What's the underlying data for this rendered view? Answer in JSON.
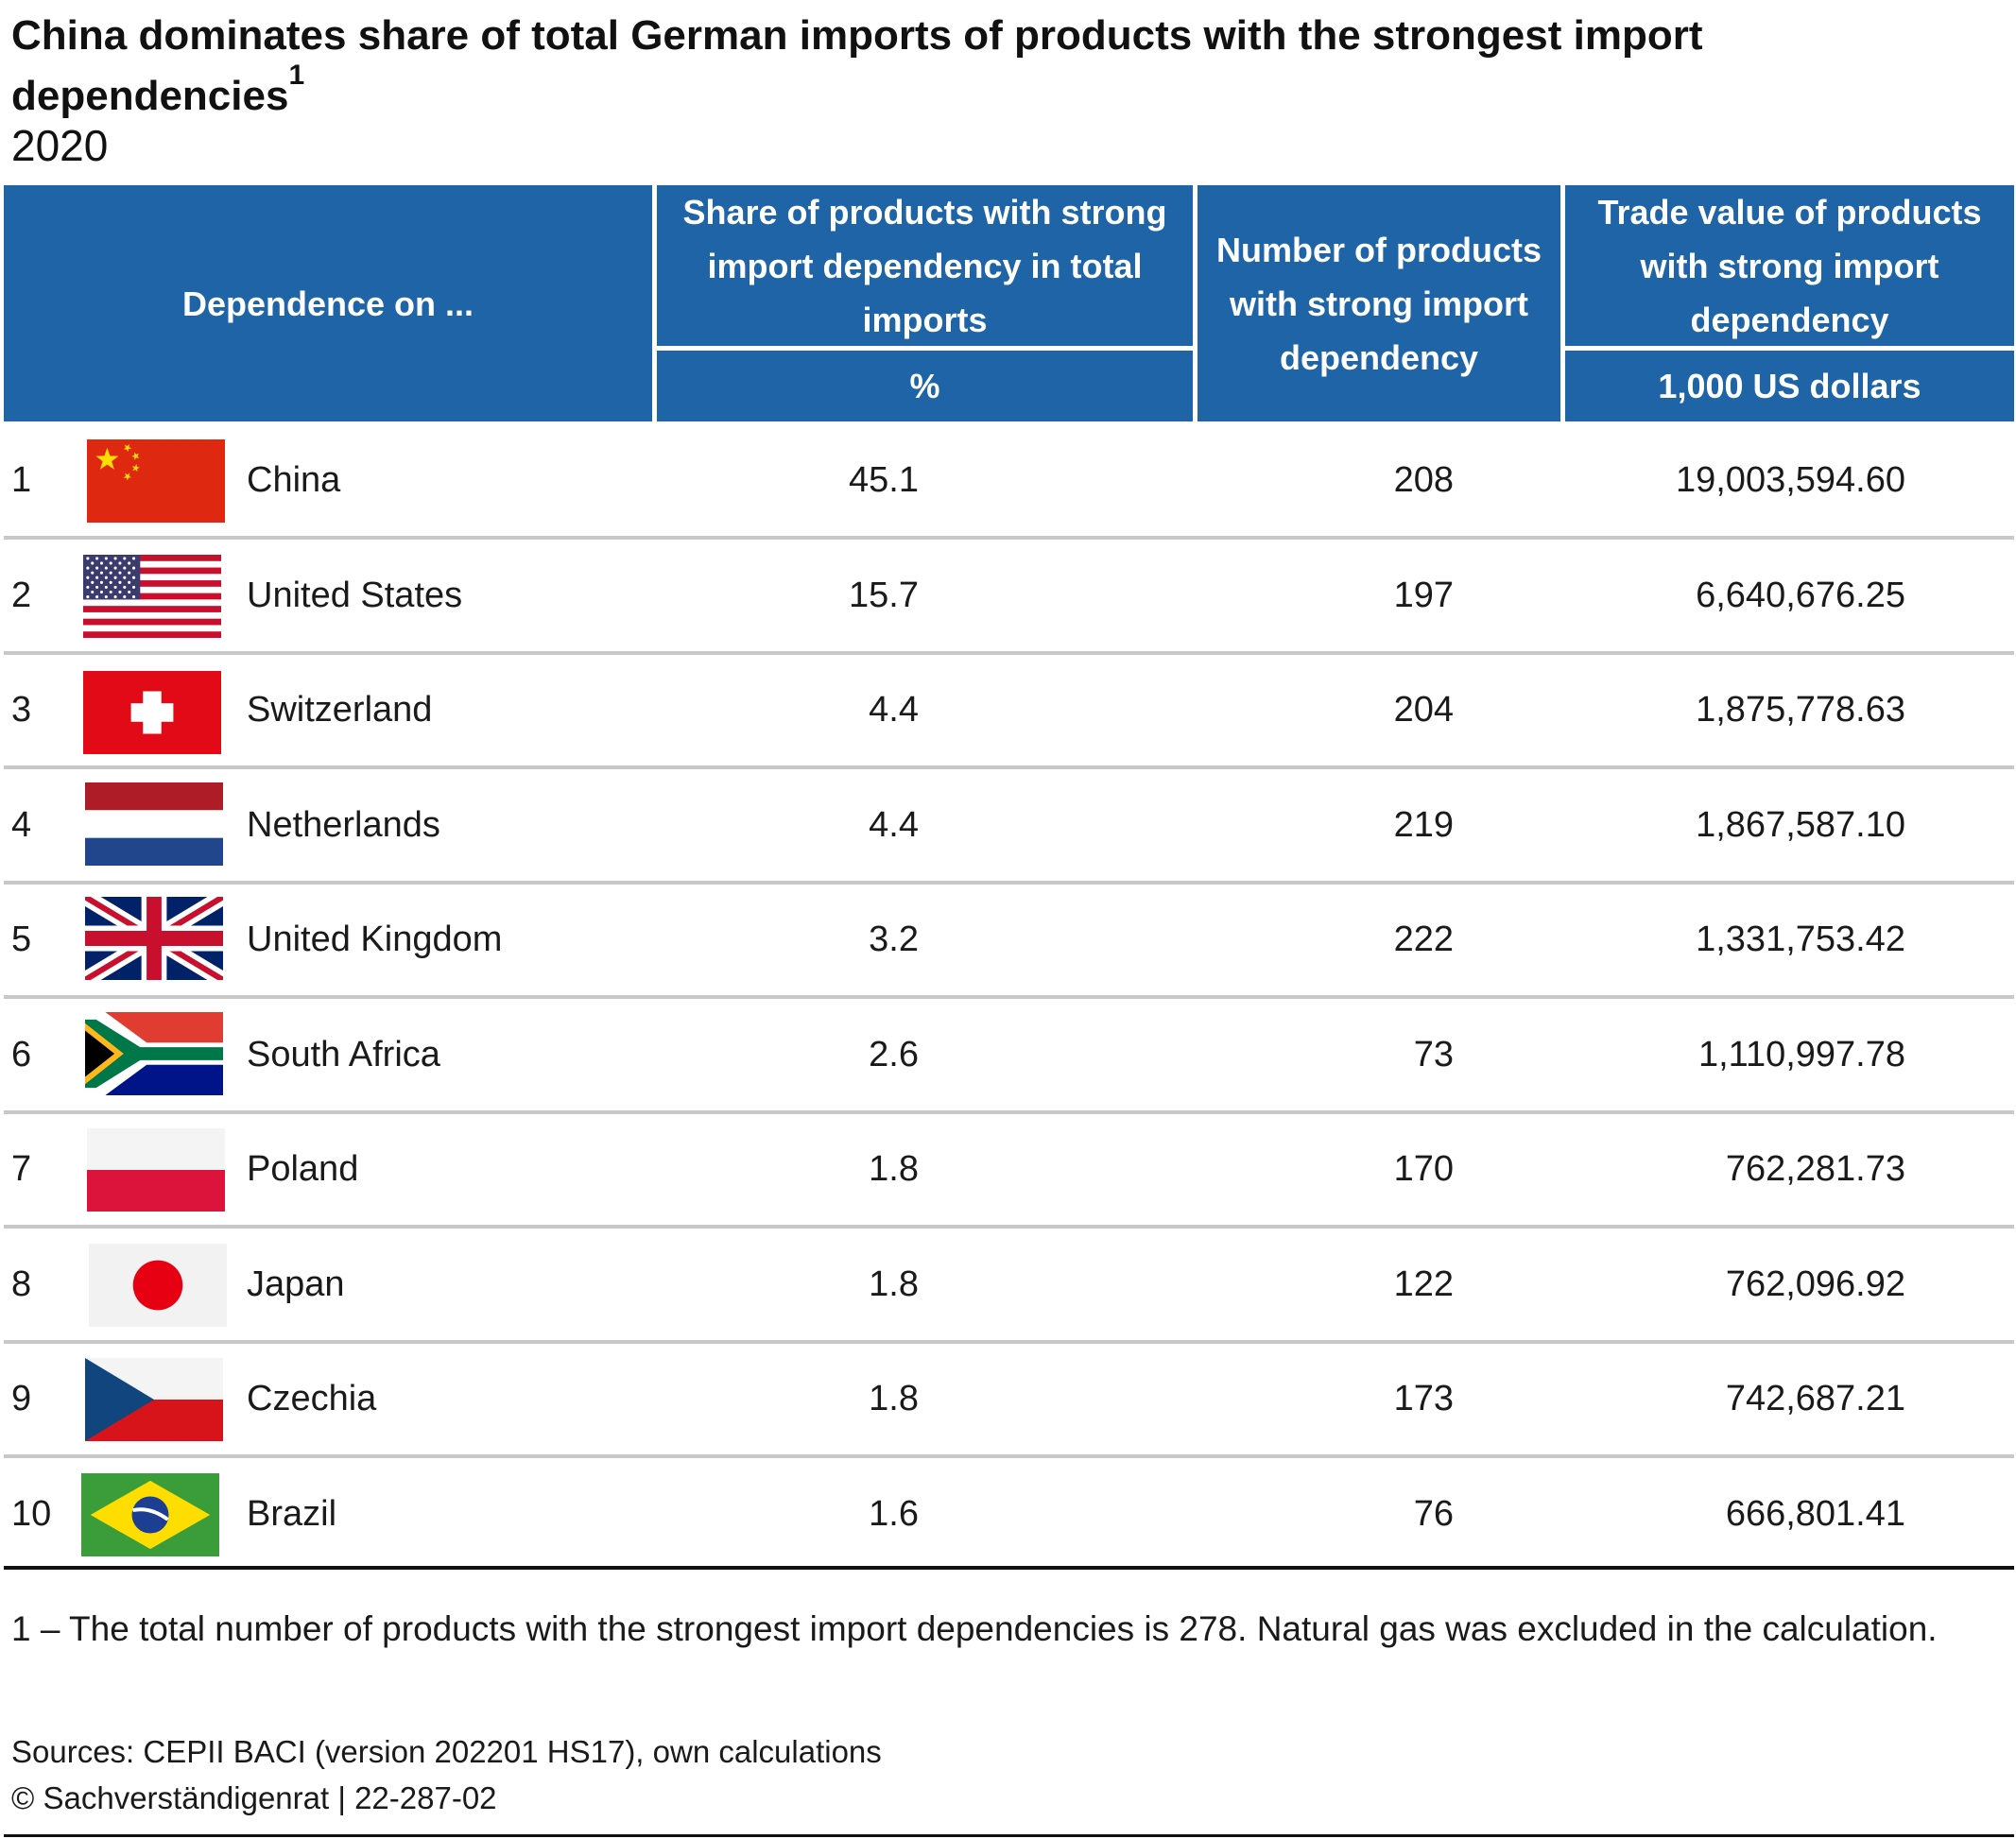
{
  "title": "China dominates share of total German imports of products with the strongest import dependencies",
  "title_footnote_ref": "1",
  "subtitle": "2020",
  "columns": {
    "dependence": "Dependence on ...",
    "share": "Share of products with strong import dependency in total imports",
    "share_unit": "%",
    "number": "Number of products with strong import dependency",
    "trade": "Trade value of products with strong import dependency",
    "trade_unit": "1,000 US dollars"
  },
  "rows": [
    {
      "rank": "1",
      "country": "China",
      "share": "45.1",
      "number": "208",
      "trade": "19,003,594.60",
      "flag": "china-flag"
    },
    {
      "rank": "2",
      "country": "United States",
      "share": "15.7",
      "number": "197",
      "trade": "6,640,676.25",
      "flag": "usa-flag"
    },
    {
      "rank": "3",
      "country": "Switzerland",
      "share": "4.4",
      "number": "204",
      "trade": "1,875,778.63",
      "flag": "switzerland-flag"
    },
    {
      "rank": "4",
      "country": "Netherlands",
      "share": "4.4",
      "number": "219",
      "trade": "1,867,587.10",
      "flag": "netherlands-flag"
    },
    {
      "rank": "5",
      "country": "United Kingdom",
      "share": "3.2",
      "number": "222",
      "trade": "1,331,753.42",
      "flag": "uk-flag"
    },
    {
      "rank": "6",
      "country": "South Africa",
      "share": "2.6",
      "number": "73",
      "trade": "1,110,997.78",
      "flag": "south-africa-flag"
    },
    {
      "rank": "7",
      "country": "Poland",
      "share": "1.8",
      "number": "170",
      "trade": "762,281.73",
      "flag": "poland-flag"
    },
    {
      "rank": "8",
      "country": "Japan",
      "share": "1.8",
      "number": "122",
      "trade": "762,096.92",
      "flag": "japan-flag"
    },
    {
      "rank": "9",
      "country": "Czechia",
      "share": "1.8",
      "number": "173",
      "trade": "742,687.21",
      "flag": "czechia-flag"
    },
    {
      "rank": "10",
      "country": "Brazil",
      "share": "1.6",
      "number": "76",
      "trade": "666,801.41",
      "flag": "brazil-flag"
    }
  ],
  "footnote": "1 – The total number of products with the strongest import dependencies is 278. Natural gas was excluded in the calculation.",
  "sources": "Sources: CEPII BACI (version 202201 HS17), own calculations",
  "copyright": "© Sachverständigenrat | 22-287-02",
  "colors": {
    "header_bg": "#1e64a6",
    "header_text": "#ffffff",
    "row_separator": "#c8c8c8"
  }
}
